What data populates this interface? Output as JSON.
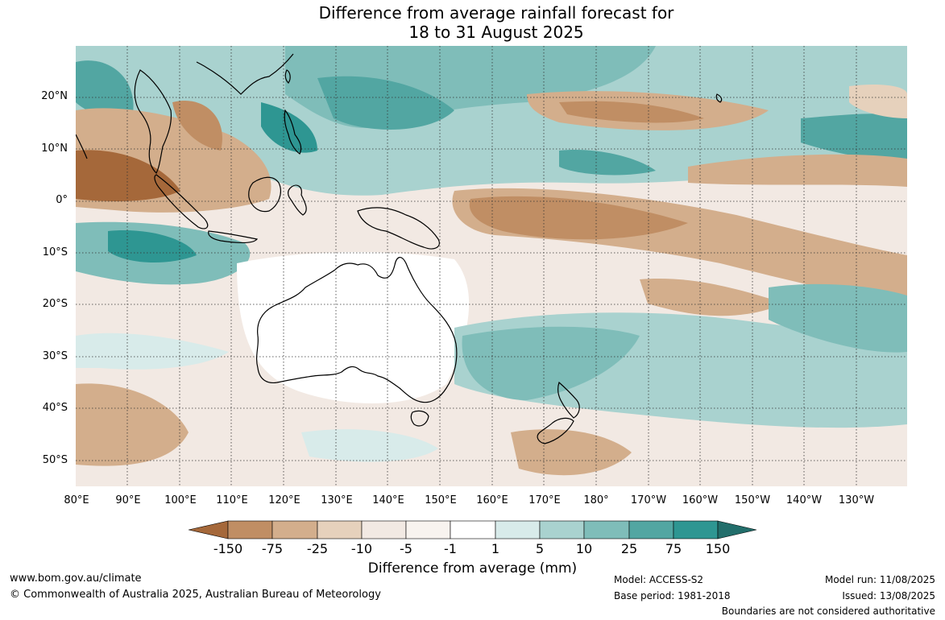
{
  "title": {
    "line1": "Difference from average rainfall forecast for",
    "line2": "18 to 31 August 2025"
  },
  "lat_labels": [
    "20°N",
    "10°N",
    "0°",
    "10°S",
    "20°S",
    "30°S",
    "40°S",
    "50°S"
  ],
  "lon_labels": [
    "80°E",
    "90°E",
    "100°E",
    "110°E",
    "120°E",
    "130°E",
    "140°E",
    "150°E",
    "160°E",
    "170°E",
    "180°",
    "170°W",
    "160°W",
    "150°W",
    "140°W",
    "130°W"
  ],
  "legend": {
    "title": "Difference from average (mm)",
    "tick_labels": [
      "-150",
      "-75",
      "-25",
      "-10",
      "-5",
      "-1",
      "1",
      "5",
      "10",
      "25",
      "75",
      "150"
    ],
    "colors": [
      "#a5683a",
      "#c08e64",
      "#d3ae8c",
      "#e6d1bc",
      "#f2e9e3",
      "#ffffff",
      "#d8ebea",
      "#a9d2cf",
      "#7fbdb9",
      "#52a6a2",
      "#2e9692",
      "#226e6b"
    ]
  },
  "footer": {
    "url": "www.bom.gov.au/climate",
    "copyright": "© Commonwealth of Australia 2025, Australian Bureau of Meteorology",
    "model": "Model: ACCESS-S2",
    "base_period": "Base period: 1981-2018",
    "model_run": "Model run: 11/08/2025",
    "issued": "Issued: 13/08/2025",
    "disclaimer": "Boundaries are not considered authoritative"
  }
}
